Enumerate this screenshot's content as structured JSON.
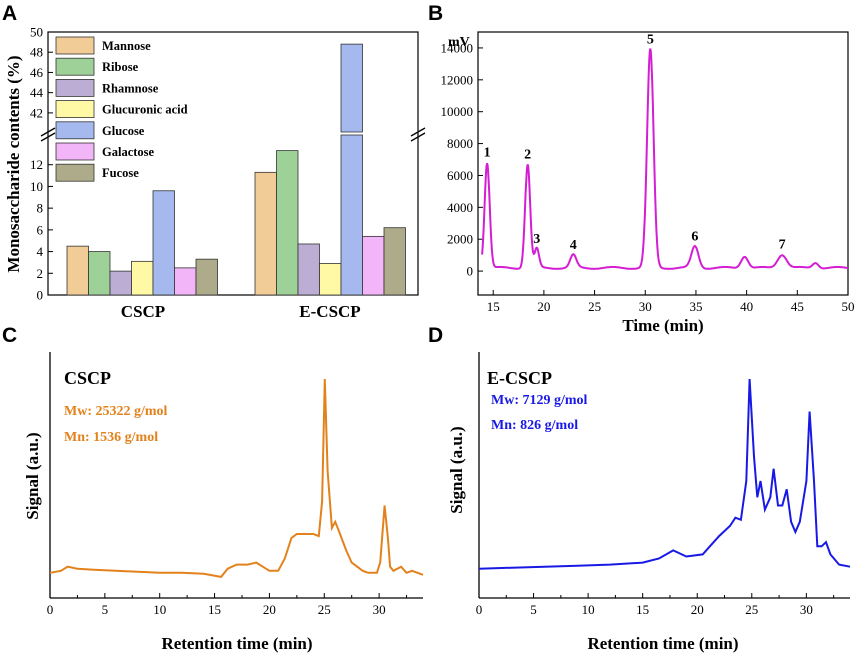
{
  "panels": {
    "a": "A",
    "b": "B",
    "c": "C",
    "d": "D"
  },
  "colors": {
    "series": [
      "#f2cc96",
      "#9dd198",
      "#bcadd5",
      "#fff9a5",
      "#a5b9ee",
      "#f1b5f8",
      "#aeab8a"
    ],
    "hplc": "#d41ed4",
    "cscp": "#e3821c",
    "ecscp": "#1919e6"
  },
  "chart_data": [
    {
      "id": "A",
      "type": "bar",
      "ylabel": "Monosaccharide contents (%)",
      "categories": [
        "CSCP",
        "E-CSCP"
      ],
      "axis_break": {
        "lower": [
          0,
          14
        ],
        "upper": [
          41,
          50
        ]
      },
      "lower_ticks": [
        0,
        2,
        4,
        6,
        8,
        10,
        12
      ],
      "upper_ticks": [
        42,
        44,
        46,
        48,
        50
      ],
      "series": [
        {
          "name": "Mannose",
          "values": [
            4.5,
            11.3
          ]
        },
        {
          "name": "Ribose",
          "values": [
            4.0,
            13.3
          ]
        },
        {
          "name": "Rhamnose",
          "values": [
            2.2,
            4.7
          ]
        },
        {
          "name": "Glucuronic acid",
          "values": [
            3.1,
            2.9
          ]
        },
        {
          "name": "Glucose",
          "values": [
            9.6,
            48.8
          ]
        },
        {
          "name": "Galactose",
          "values": [
            2.5,
            5.4
          ]
        },
        {
          "name": "Fucose",
          "values": [
            3.3,
            6.2
          ]
        }
      ]
    },
    {
      "id": "B",
      "type": "line",
      "xlabel": "Time (min)",
      "yunit": "mV",
      "xlim": [
        13.5,
        50
      ],
      "ylim": [
        -1500,
        15000
      ],
      "xticks": [
        15,
        20,
        25,
        30,
        35,
        40,
        45,
        50
      ],
      "yticks": [
        0,
        2000,
        4000,
        6000,
        8000,
        10000,
        12000,
        14000
      ],
      "baseline": 200,
      "peaks": [
        {
          "label": "1",
          "x": 14.4,
          "y": 6800,
          "w": 0.25,
          "labeled": true
        },
        {
          "label": "2",
          "x": 18.4,
          "y": 6700,
          "w": 0.25,
          "labeled": true
        },
        {
          "label": "3",
          "x": 19.3,
          "y": 1400,
          "w": 0.22,
          "labeled": true
        },
        {
          "label": "4",
          "x": 22.9,
          "y": 1000,
          "w": 0.3,
          "labeled": true
        },
        {
          "label": "5",
          "x": 30.5,
          "y": 13900,
          "w": 0.32,
          "labeled": true
        },
        {
          "label": "6",
          "x": 34.9,
          "y": 1550,
          "w": 0.35,
          "labeled": true
        },
        {
          "label": "",
          "x": 39.8,
          "y": 950,
          "w": 0.35,
          "labeled": false
        },
        {
          "label": "7",
          "x": 43.5,
          "y": 1050,
          "w": 0.45,
          "labeled": true
        },
        {
          "label": "",
          "x": 46.8,
          "y": 550,
          "w": 0.3,
          "labeled": false
        }
      ]
    },
    {
      "id": "C",
      "type": "line",
      "title": "CSCP",
      "annotations": [
        "Mw: 25322 g/mol",
        "Mn: 1536 g/mol"
      ],
      "xlabel": "Retention time (min)",
      "ylabel": "Signal (a.u.)",
      "xlim": [
        0,
        34
      ],
      "xticks": [
        0,
        5,
        10,
        15,
        20,
        25,
        30
      ],
      "points": [
        [
          0,
          0.05
        ],
        [
          1,
          0.06
        ],
        [
          1.6,
          0.08
        ],
        [
          2.5,
          0.07
        ],
        [
          4,
          0.065
        ],
        [
          6,
          0.06
        ],
        [
          8,
          0.055
        ],
        [
          10,
          0.05
        ],
        [
          12,
          0.05
        ],
        [
          14,
          0.045
        ],
        [
          15.6,
          0.03
        ],
        [
          16.2,
          0.07
        ],
        [
          17,
          0.09
        ],
        [
          18,
          0.09
        ],
        [
          18.8,
          0.1
        ],
        [
          19.4,
          0.08
        ],
        [
          20,
          0.06
        ],
        [
          20.8,
          0.06
        ],
        [
          21.4,
          0.12
        ],
        [
          22,
          0.22
        ],
        [
          22.5,
          0.24
        ],
        [
          23,
          0.24
        ],
        [
          24,
          0.24
        ],
        [
          24.5,
          0.23
        ],
        [
          24.8,
          0.4
        ],
        [
          25.05,
          1.0
        ],
        [
          25.3,
          0.55
        ],
        [
          25.7,
          0.27
        ],
        [
          26,
          0.3
        ],
        [
          26.3,
          0.26
        ],
        [
          27,
          0.16
        ],
        [
          27.5,
          0.1
        ],
        [
          28,
          0.08
        ],
        [
          28.5,
          0.06
        ],
        [
          29,
          0.05
        ],
        [
          29.8,
          0.05
        ],
        [
          30.1,
          0.1
        ],
        [
          30.5,
          0.38
        ],
        [
          30.8,
          0.22
        ],
        [
          31,
          0.08
        ],
        [
          31.3,
          0.06
        ],
        [
          32,
          0.08
        ],
        [
          32.5,
          0.05
        ],
        [
          33,
          0.06
        ],
        [
          34,
          0.04
        ]
      ]
    },
    {
      "id": "D",
      "type": "line",
      "title": "E-CSCP",
      "annotations": [
        "Mw: 7129 g/mol",
        "Mn: 826 g/mol"
      ],
      "xlabel": "Retention time (min)",
      "ylabel": "Signal (a.u.)",
      "xlim": [
        0,
        34
      ],
      "xticks": [
        0,
        5,
        10,
        15,
        20,
        25,
        30
      ],
      "points": [
        [
          0,
          0.07
        ],
        [
          3,
          0.075
        ],
        [
          6,
          0.08
        ],
        [
          9,
          0.085
        ],
        [
          12,
          0.09
        ],
        [
          15,
          0.1
        ],
        [
          16.5,
          0.12
        ],
        [
          17.8,
          0.16
        ],
        [
          19,
          0.13
        ],
        [
          20.5,
          0.14
        ],
        [
          21,
          0.17
        ],
        [
          22,
          0.23
        ],
        [
          23,
          0.28
        ],
        [
          23.5,
          0.32
        ],
        [
          24,
          0.31
        ],
        [
          24.5,
          0.5
        ],
        [
          24.8,
          1.0
        ],
        [
          25.2,
          0.62
        ],
        [
          25.5,
          0.42
        ],
        [
          25.8,
          0.5
        ],
        [
          26.2,
          0.36
        ],
        [
          26.7,
          0.42
        ],
        [
          27,
          0.56
        ],
        [
          27.4,
          0.38
        ],
        [
          27.8,
          0.38
        ],
        [
          28.2,
          0.46
        ],
        [
          28.6,
          0.3
        ],
        [
          29,
          0.25
        ],
        [
          29.4,
          0.3
        ],
        [
          30,
          0.5
        ],
        [
          30.3,
          0.84
        ],
        [
          30.7,
          0.5
        ],
        [
          31,
          0.18
        ],
        [
          31.4,
          0.18
        ],
        [
          31.8,
          0.2
        ],
        [
          32.2,
          0.14
        ],
        [
          33,
          0.09
        ],
        [
          34,
          0.08
        ]
      ]
    }
  ]
}
